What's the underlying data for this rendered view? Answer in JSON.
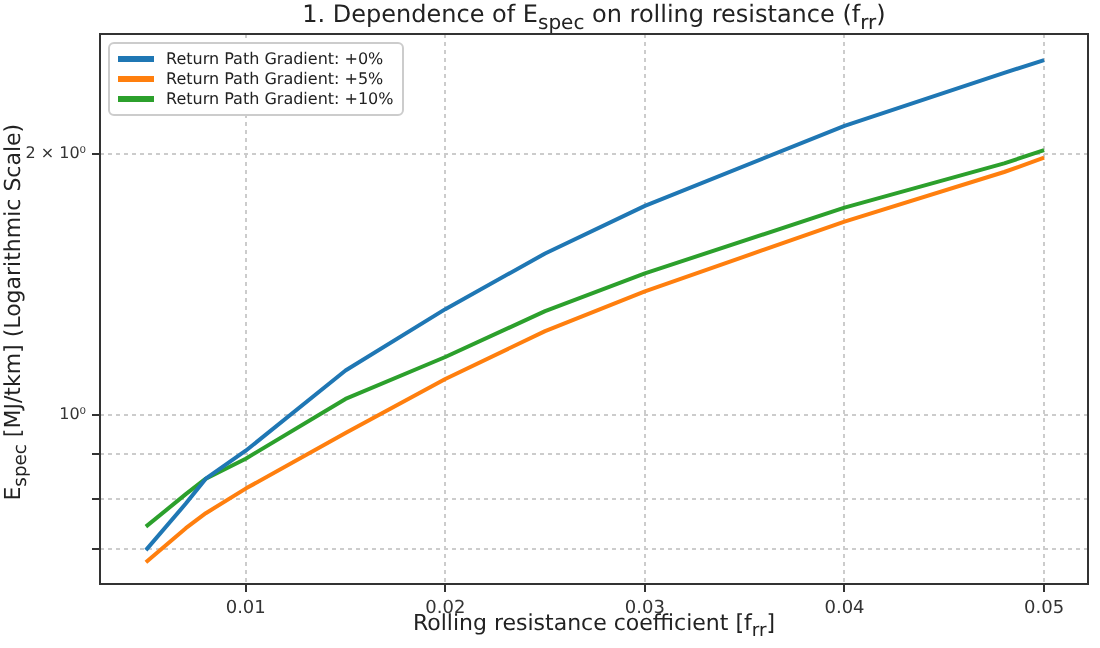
{
  "chart_data": {
    "type": "line",
    "title": "1. Dependence of E$_{spec}$ on rolling resistance (f$_{rr}$)",
    "xlabel": "Rolling resistance coefficient [f$_{rr}$]",
    "ylabel": "E$_{spec}$ [MJ/tkm] (Logarithmic Scale)",
    "x": [
      0.005,
      0.007,
      0.008,
      0.01,
      0.015,
      0.02,
      0.025,
      0.03,
      0.04,
      0.048,
      0.05
    ],
    "series": [
      {
        "name": "Return Path Gradient: +0%",
        "color": "#1f77b4",
        "values": [
          0.698,
          0.79,
          0.844,
          0.909,
          1.125,
          1.324,
          1.535,
          1.742,
          2.155,
          2.48,
          2.566
        ]
      },
      {
        "name": "Return Path Gradient: +5%",
        "color": "#ff7f0e",
        "values": [
          0.676,
          0.74,
          0.77,
          0.822,
          0.953,
          1.1,
          1.249,
          1.388,
          1.671,
          1.906,
          1.98
        ]
      },
      {
        "name": "Return Path Gradient: +10%",
        "color": "#2ca02c",
        "values": [
          0.743,
          0.81,
          0.844,
          0.89,
          1.043,
          1.166,
          1.317,
          1.456,
          1.734,
          1.95,
          2.02
        ]
      }
    ],
    "xlim": [
      0.0027,
      0.0522
    ],
    "xticks": [
      0.01,
      0.02,
      0.03,
      0.04,
      0.05
    ],
    "ylim": [
      0.638,
      2.75
    ],
    "yticks": [
      {
        "value": 0.7,
        "label": null
      },
      {
        "value": 0.8,
        "label": null
      },
      {
        "value": 0.9,
        "label": null
      },
      {
        "value": 1,
        "label": "10⁰"
      },
      {
        "value": 2,
        "label": "2 × 10⁰"
      }
    ],
    "log": "y",
    "grid": true,
    "legend": "top left",
    "marker": "none",
    "line_style": "solid"
  }
}
